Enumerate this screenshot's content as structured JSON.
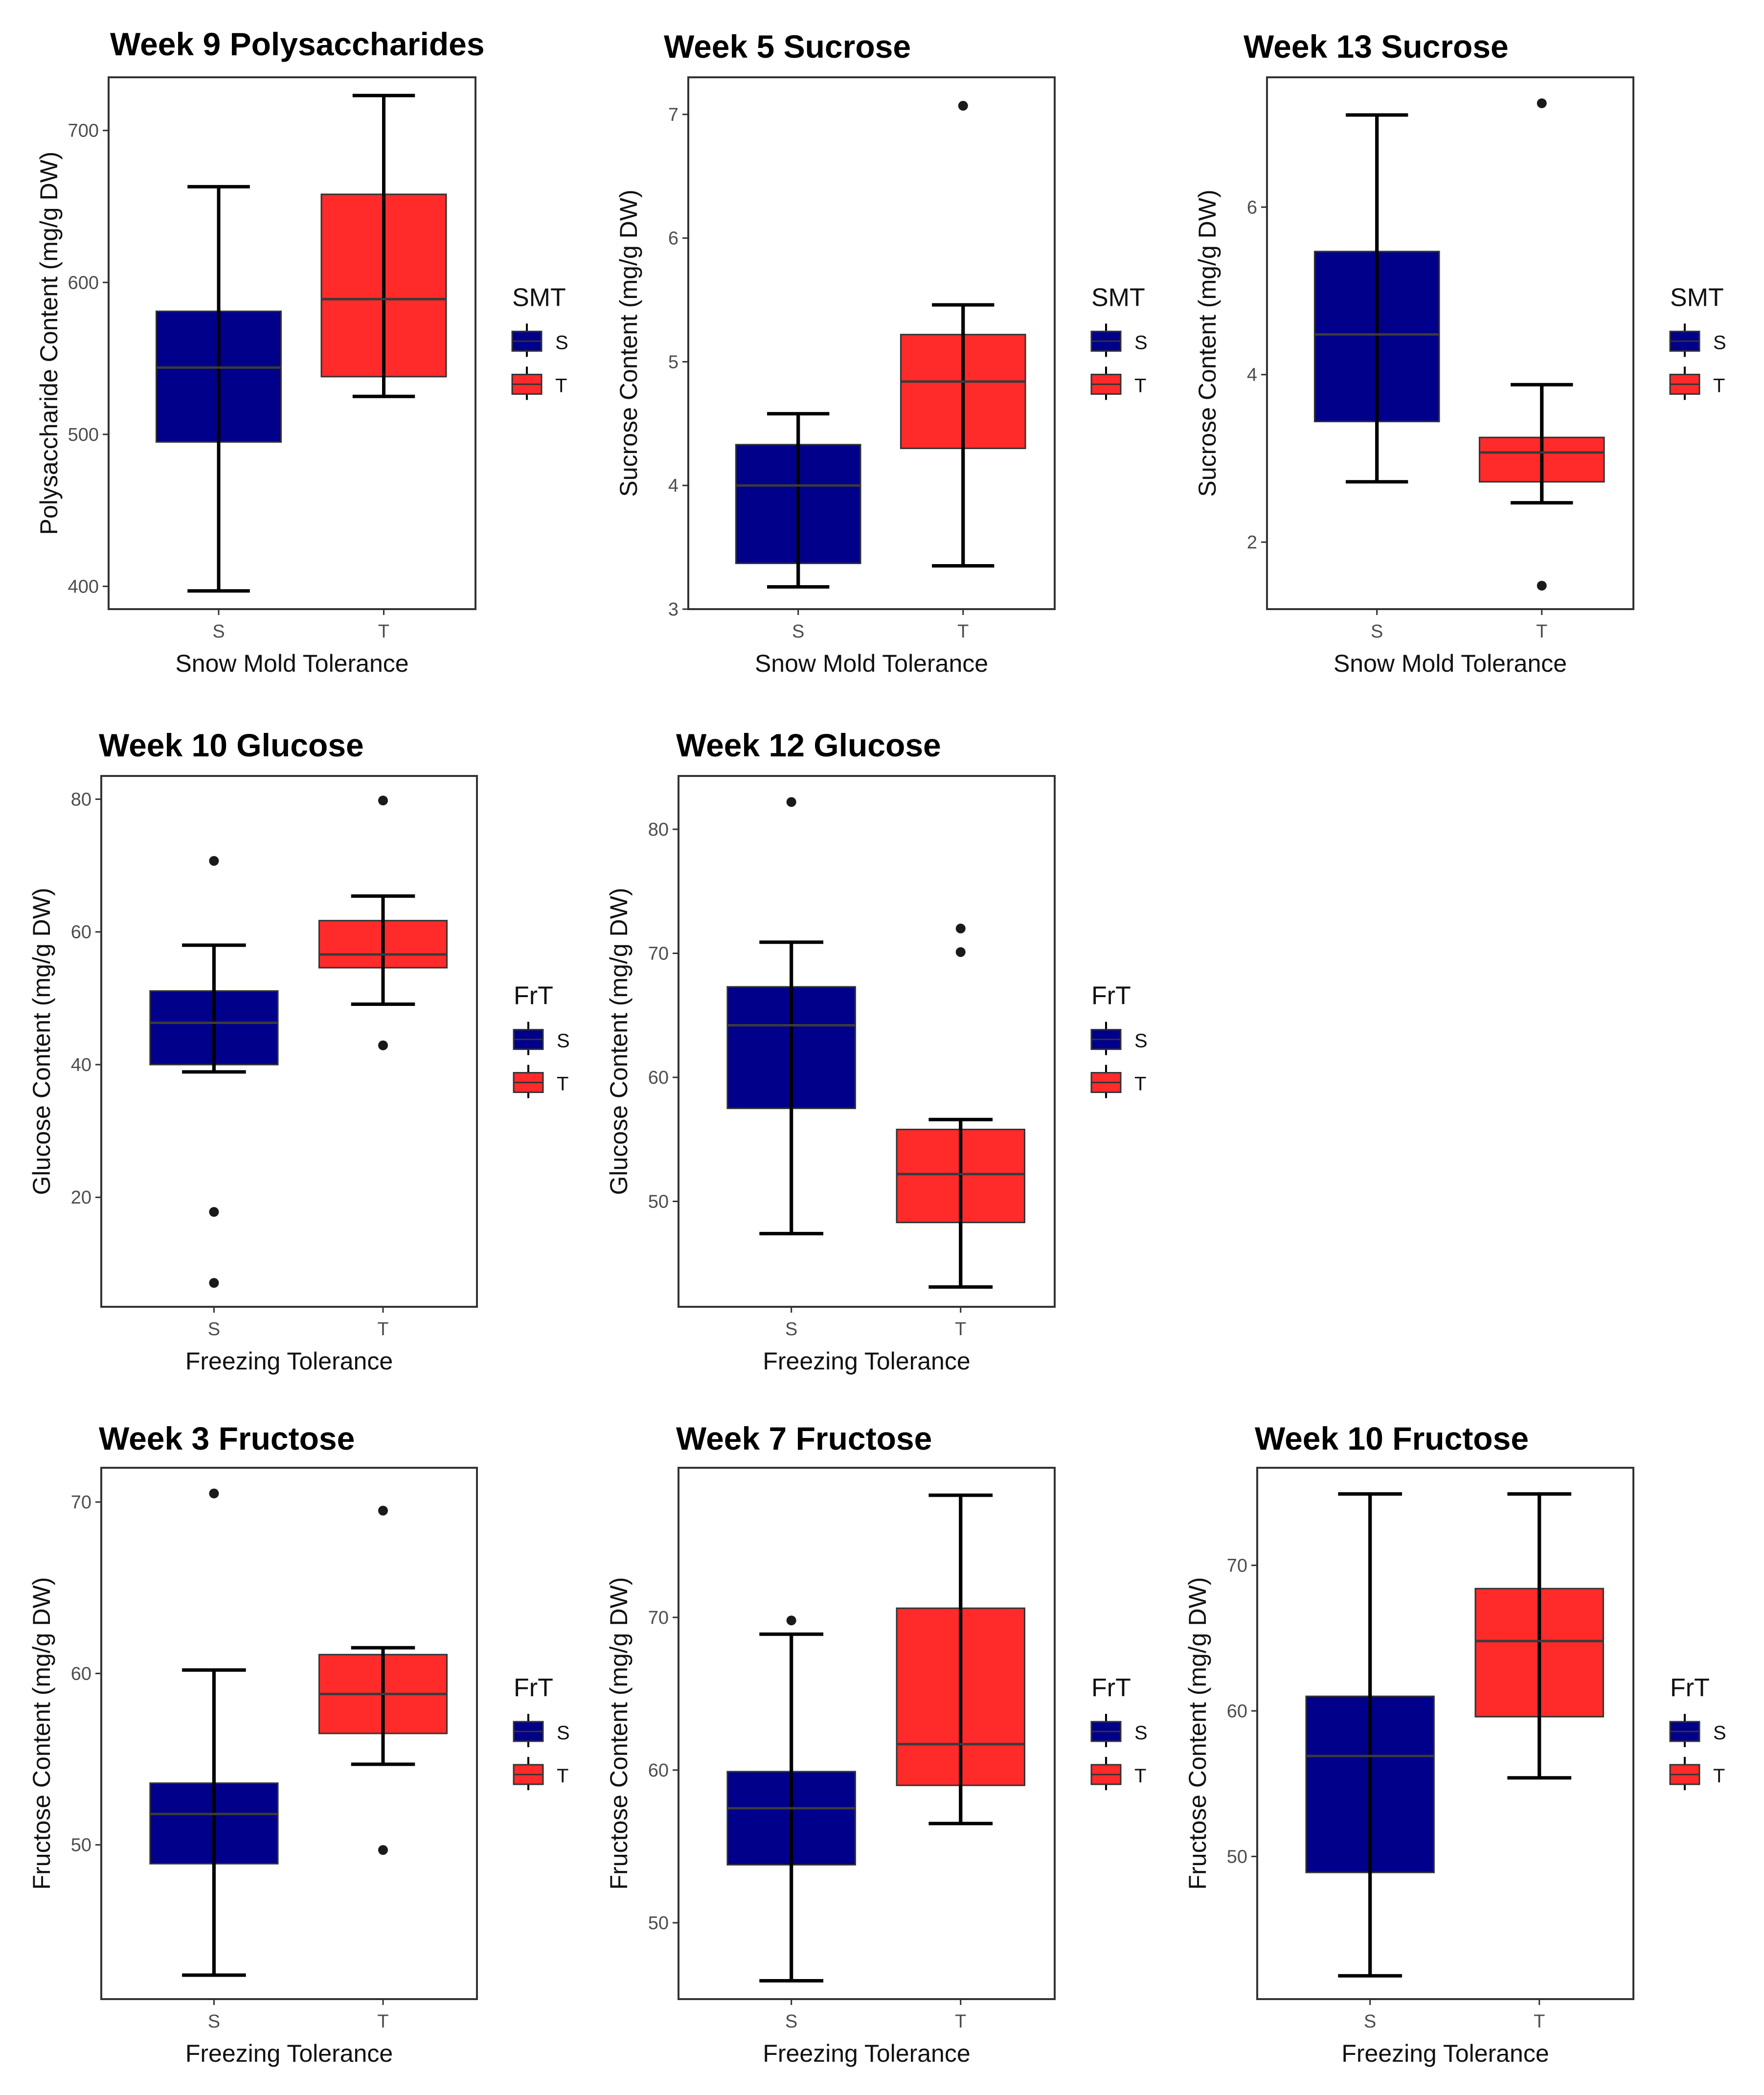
{
  "colors": {
    "S": "#00008b",
    "T": "#ff2a2a"
  },
  "chart_data": [
    {
      "type": "boxplot",
      "title": "Week 9 Polysaccharides",
      "xlabel": "Snow Mold Tolerance",
      "ylabel": "Polysaccharide Content (mg/g DW)",
      "ylim": [
        385,
        735
      ],
      "yticks": [
        400,
        500,
        600,
        700
      ],
      "ytick_labels": [
        "400",
        "500",
        "600",
        "700"
      ],
      "categories": [
        "S",
        "T"
      ],
      "boxes": [
        {
          "name": "S",
          "whisker_low": 397,
          "q1": 495,
          "median": 544,
          "q3": 581,
          "whisker_high": 663,
          "outliers": []
        },
        {
          "name": "T",
          "whisker_low": 525,
          "q1": 538,
          "median": 589,
          "q3": 658,
          "whisker_high": 723,
          "outliers": []
        }
      ],
      "legend": {
        "title": "SMT",
        "entries": [
          "S",
          "T"
        ],
        "position": "right"
      }
    },
    {
      "type": "boxplot",
      "title": "Week 5 Sucrose",
      "xlabel": "Snow Mold Tolerance",
      "ylabel": "Sucrose Content (mg/g DW)",
      "ylim": [
        3.0,
        7.3
      ],
      "yticks": [
        3,
        4,
        5,
        6,
        7
      ],
      "ytick_labels": [
        "3",
        "4",
        "5",
        "6",
        "7"
      ],
      "categories": [
        "S",
        "T"
      ],
      "boxes": [
        {
          "name": "S",
          "whisker_low": 3.18,
          "q1": 3.37,
          "median": 4.0,
          "q3": 4.33,
          "whisker_high": 4.58,
          "outliers": []
        },
        {
          "name": "T",
          "whisker_low": 3.35,
          "q1": 4.3,
          "median": 4.84,
          "q3": 5.22,
          "whisker_high": 5.46,
          "outliers": [
            7.07
          ]
        }
      ],
      "legend": {
        "title": "SMT",
        "entries": [
          "S",
          "T"
        ],
        "position": "right"
      }
    },
    {
      "type": "boxplot",
      "title": "Week 13 Sucrose",
      "xlabel": "Snow Mold Tolerance",
      "ylabel": "Sucrose Content (mg/g DW)",
      "ylim": [
        1.2,
        7.55
      ],
      "yticks": [
        2,
        4,
        6
      ],
      "ytick_labels": [
        "2",
        "4",
        "6"
      ],
      "categories": [
        "S",
        "T"
      ],
      "boxes": [
        {
          "name": "S",
          "whisker_low": 2.72,
          "q1": 3.44,
          "median": 4.48,
          "q3": 5.47,
          "whisker_high": 7.1,
          "outliers": []
        },
        {
          "name": "T",
          "whisker_low": 2.47,
          "q1": 2.72,
          "median": 3.07,
          "q3": 3.25,
          "whisker_high": 3.88,
          "outliers": [
            1.48,
            7.24
          ]
        }
      ],
      "legend": {
        "title": "SMT",
        "entries": [
          "S",
          "T"
        ],
        "position": "right"
      }
    },
    {
      "type": "boxplot",
      "title": "Week 10 Glucose",
      "xlabel": "Freezing Tolerance",
      "ylabel": "Glucose Content (mg/g DW)",
      "ylim": [
        3.5,
        83.5
      ],
      "yticks": [
        20,
        40,
        60,
        80
      ],
      "ytick_labels": [
        "20",
        "40",
        "60",
        "80"
      ],
      "categories": [
        "S",
        "T"
      ],
      "boxes": [
        {
          "name": "S",
          "whisker_low": 38.9,
          "q1": 40.0,
          "median": 46.3,
          "q3": 51.1,
          "whisker_high": 58.0,
          "outliers": [
            7.1,
            17.8,
            70.7
          ]
        },
        {
          "name": "T",
          "whisker_low": 49.1,
          "q1": 54.6,
          "median": 56.6,
          "q3": 61.7,
          "whisker_high": 65.4,
          "outliers": [
            42.9,
            79.8
          ]
        }
      ],
      "legend": {
        "title": "FrT",
        "entries": [
          "S",
          "T"
        ],
        "position": "right"
      }
    },
    {
      "type": "boxplot",
      "title": "Week 12 Glucose",
      "xlabel": "Freezing Tolerance",
      "ylabel": "Glucose Content (mg/g DW)",
      "ylim": [
        41.5,
        84.3
      ],
      "yticks": [
        50,
        60,
        70,
        80
      ],
      "ytick_labels": [
        "50",
        "60",
        "70",
        "80"
      ],
      "categories": [
        "S",
        "T"
      ],
      "boxes": [
        {
          "name": "S",
          "whisker_low": 47.4,
          "q1": 57.5,
          "median": 64.2,
          "q3": 67.3,
          "whisker_high": 70.9,
          "outliers": [
            82.2
          ]
        },
        {
          "name": "T",
          "whisker_low": 43.1,
          "q1": 48.3,
          "median": 52.2,
          "q3": 55.8,
          "whisker_high": 56.6,
          "outliers": [
            70.1,
            72.0
          ]
        }
      ],
      "legend": {
        "title": "FrT",
        "entries": [
          "S",
          "T"
        ],
        "position": "right"
      }
    },
    {
      "type": "boxplot",
      "title": "Week 3 Fructose",
      "xlabel": "Freezing Tolerance",
      "ylabel": "Fructose Content (mg/g DW)",
      "ylim": [
        41.0,
        72.0
      ],
      "yticks": [
        50,
        60,
        70
      ],
      "ytick_labels": [
        "50",
        "60",
        "70"
      ],
      "categories": [
        "S",
        "T"
      ],
      "boxes": [
        {
          "name": "S",
          "whisker_low": 42.4,
          "q1": 48.9,
          "median": 51.8,
          "q3": 53.6,
          "whisker_high": 60.2,
          "outliers": [
            70.5
          ]
        },
        {
          "name": "T",
          "whisker_low": 54.7,
          "q1": 56.5,
          "median": 58.8,
          "q3": 61.1,
          "whisker_high": 61.5,
          "outliers": [
            49.7,
            69.5
          ]
        }
      ],
      "legend": {
        "title": "FrT",
        "entries": [
          "S",
          "T"
        ],
        "position": "right"
      }
    },
    {
      "type": "boxplot",
      "title": "Week 7 Fructose",
      "xlabel": "Freezing Tolerance",
      "ylabel": "Fructose Content (mg/g DW)",
      "ylim": [
        45.0,
        79.8
      ],
      "yticks": [
        50,
        60,
        70
      ],
      "ytick_labels": [
        "50",
        "60",
        "70"
      ],
      "categories": [
        "S",
        "T"
      ],
      "boxes": [
        {
          "name": "S",
          "whisker_low": 46.2,
          "q1": 53.8,
          "median": 57.5,
          "q3": 59.9,
          "whisker_high": 68.9,
          "outliers": [
            69.8
          ]
        },
        {
          "name": "T",
          "whisker_low": 56.5,
          "q1": 59.0,
          "median": 61.7,
          "q3": 70.6,
          "whisker_high": 78.0,
          "outliers": []
        }
      ],
      "legend": {
        "title": "FrT",
        "entries": [
          "S",
          "T"
        ],
        "position": "right"
      }
    },
    {
      "type": "boxplot",
      "title": "Week 10 Fructose",
      "xlabel": "Freezing Tolerance",
      "ylabel": "Fructose Content (mg/g DW)",
      "ylim": [
        40.2,
        76.7
      ],
      "yticks": [
        50,
        60,
        70
      ],
      "ytick_labels": [
        "50",
        "60",
        "70"
      ],
      "categories": [
        "S",
        "T"
      ],
      "boxes": [
        {
          "name": "S",
          "whisker_low": 41.8,
          "q1": 48.9,
          "median": 56.9,
          "q3": 61.0,
          "whisker_high": 74.9,
          "outliers": []
        },
        {
          "name": "T",
          "whisker_low": 55.4,
          "q1": 59.6,
          "median": 64.8,
          "q3": 68.4,
          "whisker_high": 74.9,
          "outliers": []
        }
      ],
      "legend": {
        "title": "FrT",
        "entries": [
          "S",
          "T"
        ],
        "position": "right"
      }
    }
  ]
}
